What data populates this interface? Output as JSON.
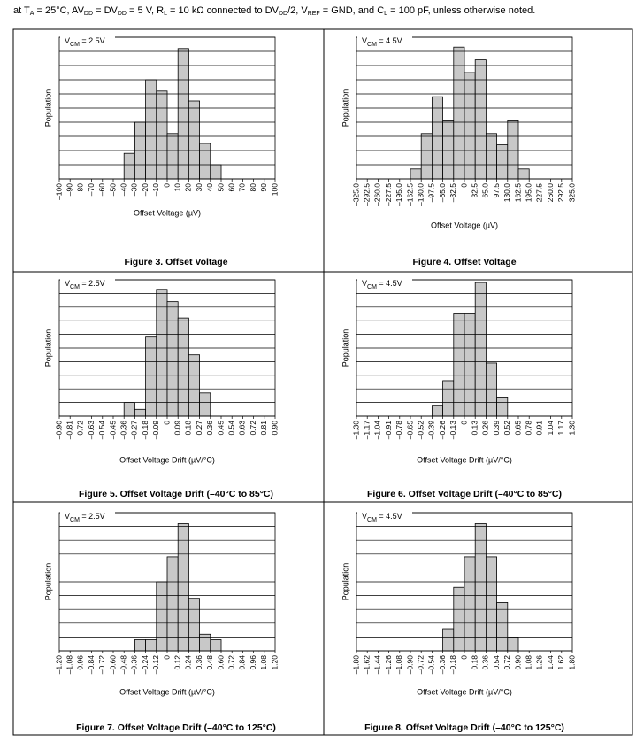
{
  "note": [
    "at T",
    "A",
    " = 25°C, AV",
    "DD",
    " = DV",
    "DD",
    " = 5 V, R",
    "L",
    " = 10 kΩ connected to DV",
    "DD",
    "/2, V",
    "REF",
    " = GND, and C",
    "L",
    " = 100 pF, unless otherwise noted."
  ],
  "chart_data": [
    {
      "type": "histogram",
      "title": "Figure 3. Offset Voltage",
      "xlabel": "Offset Voltage (µV)",
      "ylabel": "Population",
      "annotation": [
        "V",
        "CM",
        " = 2.5V"
      ],
      "color": "#c8c8c8",
      "grid": true,
      "bins": [
        -40,
        -30,
        -20,
        -10,
        0,
        10,
        20,
        30,
        40,
        50
      ],
      "values": [
        1.8,
        4,
        7,
        6.2,
        3.2,
        9.2,
        5.5,
        2.5,
        1
      ],
      "xlim": [
        -100,
        100
      ],
      "ylim": [
        0,
        10
      ],
      "yticks": [
        0,
        1,
        2,
        3,
        4,
        5,
        6,
        7,
        8,
        9,
        10
      ],
      "xticks": [
        {
          "value": -100,
          "label": "–100"
        },
        {
          "value": -90,
          "label": "–90"
        },
        {
          "value": -80,
          "label": "–80"
        },
        {
          "value": -70,
          "label": "–70"
        },
        {
          "value": -60,
          "label": "–60"
        },
        {
          "value": -50,
          "label": "–50"
        },
        {
          "value": -40,
          "label": "–40"
        },
        {
          "value": -30,
          "label": "–30"
        },
        {
          "value": -20,
          "label": "–20"
        },
        {
          "value": -10,
          "label": "–10"
        },
        0,
        10,
        20,
        30,
        40,
        50,
        60,
        70,
        80,
        90,
        100
      ]
    },
    {
      "type": "histogram",
      "title": "Figure 4. Offset Voltage",
      "xlabel": "Offset Voltage (µV)",
      "ylabel": "Population",
      "annotation": [
        "V",
        "CM",
        " = 4.5V"
      ],
      "color": "#c8c8c8",
      "grid": true,
      "bins": [
        -162.5,
        -130,
        -97.5,
        -65,
        -32.5,
        0,
        32.5,
        65,
        97.5,
        130,
        162.5,
        195
      ],
      "values": [
        0.7,
        3.2,
        5.8,
        4.1,
        9.3,
        7.5,
        8.4,
        3.2,
        2.4,
        4.1,
        0.7
      ],
      "xlim": [
        -325,
        325
      ],
      "ylim": [
        0,
        10
      ],
      "yticks": [
        0,
        1,
        2,
        3,
        4,
        5,
        6,
        7,
        8,
        9,
        10
      ],
      "xticks": [
        {
          "value": -325,
          "label": "–325.0"
        },
        {
          "value": -292.5,
          "label": "–292.5"
        },
        {
          "value": -260,
          "label": "–260.0"
        },
        {
          "value": -227.5,
          "label": "–227.5"
        },
        {
          "value": -195,
          "label": "–195.0"
        },
        {
          "value": -162.5,
          "label": "–162.5"
        },
        {
          "value": -130,
          "label": "–130.0"
        },
        {
          "value": -97.5,
          "label": "–97.5"
        },
        {
          "value": -65,
          "label": "–65.0"
        },
        {
          "value": -32.5,
          "label": "–32.5"
        },
        0,
        32.5,
        {
          "value": 65,
          "label": "65.0"
        },
        97.5,
        {
          "value": 130,
          "label": "130.0"
        },
        162.5,
        {
          "value": 195,
          "label": "195.0"
        },
        227.5,
        {
          "value": 260,
          "label": "260.0"
        },
        292.5,
        {
          "value": 325,
          "label": "325.0"
        }
      ]
    },
    {
      "type": "histogram",
      "title": "Figure 5. Offset Voltage Drift (–40°C to 85°C)",
      "xlabel": "Offset Voltage Drift (µV/°C)",
      "ylabel": "Population",
      "annotation": [
        "V",
        "CM",
        " = 2.5V"
      ],
      "color": "#c8c8c8",
      "grid": true,
      "bins": [
        -0.36,
        -0.27,
        -0.18,
        -0.09,
        0,
        0.09,
        0.18,
        0.27,
        0.36
      ],
      "values": [
        1,
        0.5,
        5.8,
        9.3,
        8.4,
        7.2,
        4.5,
        1.7
      ],
      "xlim": [
        -0.9,
        0.9
      ],
      "ylim": [
        0,
        10
      ],
      "yticks": [
        0,
        1,
        2,
        3,
        4,
        5,
        6,
        7,
        8,
        9,
        10
      ],
      "xticks": [
        {
          "value": -0.9,
          "label": "–0.90"
        },
        {
          "value": -0.81,
          "label": "–0.81"
        },
        {
          "value": -0.72,
          "label": "–0.72"
        },
        {
          "value": -0.63,
          "label": "–0.63"
        },
        {
          "value": -0.54,
          "label": "–0.54"
        },
        {
          "value": -0.45,
          "label": "–0.45"
        },
        {
          "value": -0.36,
          "label": "–0.36"
        },
        {
          "value": -0.27,
          "label": "–0.27"
        },
        {
          "value": -0.18,
          "label": "–0.18"
        },
        {
          "value": -0.09,
          "label": "–0.09"
        },
        0,
        0.09,
        0.18,
        0.27,
        0.36,
        0.45,
        0.54,
        0.63,
        0.72,
        0.81,
        {
          "value": 0.9,
          "label": "0.90"
        }
      ]
    },
    {
      "type": "histogram",
      "title": "Figure 6. Offset Voltage Drift (–40°C to 85°C)",
      "xlabel": "Offset Voltage Drift (µV/°C)",
      "ylabel": "Population",
      "annotation": [
        "V",
        "CM",
        " = 4.5V"
      ],
      "color": "#c8c8c8",
      "grid": true,
      "bins": [
        -0.39,
        -0.26,
        -0.13,
        0,
        0.13,
        0.26,
        0.39,
        0.52
      ],
      "values": [
        0.8,
        2.6,
        7.5,
        7.5,
        9.8,
        3.9,
        1.4
      ],
      "xlim": [
        -1.3,
        1.3
      ],
      "ylim": [
        0,
        10
      ],
      "yticks": [
        0,
        1,
        2,
        3,
        4,
        5,
        6,
        7,
        8,
        9,
        10
      ],
      "xticks": [
        {
          "value": -1.3,
          "label": "–1.30"
        },
        {
          "value": -1.17,
          "label": "–1.17"
        },
        {
          "value": -1.04,
          "label": "–1.04"
        },
        {
          "value": -0.91,
          "label": "–0.91"
        },
        {
          "value": -0.78,
          "label": "–0.78"
        },
        {
          "value": -0.65,
          "label": "–0.65"
        },
        {
          "value": -0.52,
          "label": "–0.52"
        },
        {
          "value": -0.39,
          "label": "–0.39"
        },
        {
          "value": -0.26,
          "label": "–0.26"
        },
        {
          "value": -0.13,
          "label": "–0.13"
        },
        0,
        0.13,
        0.26,
        0.39,
        0.52,
        0.65,
        0.78,
        0.91,
        1.04,
        1.17,
        {
          "value": 1.3,
          "label": "1.30"
        }
      ]
    },
    {
      "type": "histogram",
      "title": "Figure 7. Offset Voltage Drift (–40°C to 125°C)",
      "xlabel": "Offset Voltage Drift (µV/°C)",
      "ylabel": "Population",
      "annotation": [
        "V",
        "CM",
        " = 2.5V"
      ],
      "color": "#c8c8c8",
      "grid": true,
      "bins": [
        -0.36,
        -0.24,
        -0.12,
        0,
        0.12,
        0.24,
        0.36,
        0.48,
        0.6
      ],
      "values": [
        0.8,
        0.8,
        5,
        6.8,
        9.2,
        3.8,
        1.2,
        0.8
      ],
      "xlim": [
        -1.2,
        1.2
      ],
      "ylim": [
        0,
        10
      ],
      "yticks": [
        0,
        1,
        2,
        3,
        4,
        5,
        6,
        7,
        8,
        9,
        10
      ],
      "xticks": [
        {
          "value": -1.2,
          "label": "–1.20"
        },
        {
          "value": -1.08,
          "label": "–1.08"
        },
        {
          "value": -0.96,
          "label": "–0.96"
        },
        {
          "value": -0.84,
          "label": "–0.84"
        },
        {
          "value": -0.72,
          "label": "–0.72"
        },
        {
          "value": -0.6,
          "label": "–0.60"
        },
        {
          "value": -0.48,
          "label": "–0.48"
        },
        {
          "value": -0.36,
          "label": "–0.36"
        },
        {
          "value": -0.24,
          "label": "–0.24"
        },
        {
          "value": -0.12,
          "label": "–0.12"
        },
        0,
        0.12,
        0.24,
        0.36,
        0.48,
        {
          "value": 0.6,
          "label": "0.60"
        },
        0.72,
        0.84,
        0.96,
        1.08,
        {
          "value": 1.2,
          "label": "1.20"
        }
      ]
    },
    {
      "type": "histogram",
      "title": "Figure 8. Offset Voltage Drift (–40°C to 125°C)",
      "xlabel": "Offset Voltage Drift (µV/°C)",
      "ylabel": "Population",
      "annotation": [
        "V",
        "CM",
        " = 4.5V"
      ],
      "color": "#c8c8c8",
      "grid": true,
      "bins": [
        -0.36,
        -0.18,
        0,
        0.18,
        0.36,
        0.54,
        0.72,
        0.9
      ],
      "values": [
        1.6,
        4.6,
        6.8,
        9.2,
        6.8,
        3.5,
        1
      ],
      "xlim": [
        -1.8,
        1.8
      ],
      "ylim": [
        0,
        10
      ],
      "yticks": [
        0,
        1,
        2,
        3,
        4,
        5,
        6,
        7,
        8,
        9,
        10
      ],
      "xticks": [
        {
          "value": -1.8,
          "label": "–1.80"
        },
        {
          "value": -1.62,
          "label": "–1.62"
        },
        {
          "value": -1.44,
          "label": "–1.44"
        },
        {
          "value": -1.26,
          "label": "–1.26"
        },
        {
          "value": -1.08,
          "label": "–1.08"
        },
        {
          "value": -0.9,
          "label": "–0.90"
        },
        {
          "value": -0.72,
          "label": "–0.72"
        },
        {
          "value": -0.54,
          "label": "–0.54"
        },
        {
          "value": -0.36,
          "label": "–0.36"
        },
        {
          "value": -0.18,
          "label": "–0.18"
        },
        0,
        0.18,
        0.36,
        0.54,
        0.72,
        {
          "value": 0.9,
          "label": "0.90"
        },
        1.08,
        1.26,
        1.44,
        1.62,
        {
          "value": 1.8,
          "label": "1.80"
        }
      ]
    }
  ]
}
